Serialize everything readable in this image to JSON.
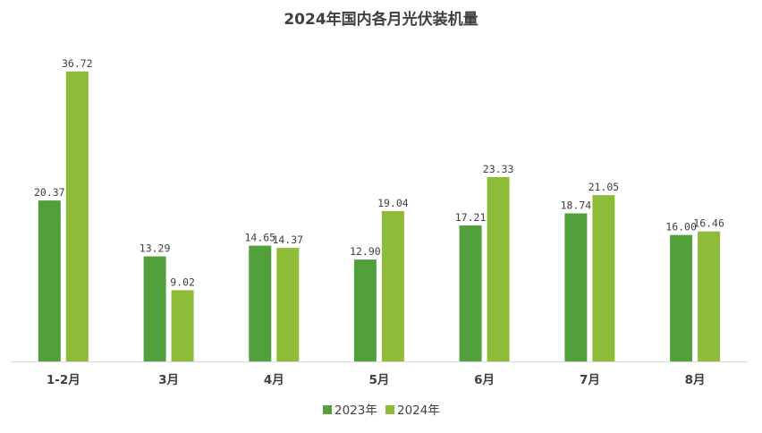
{
  "chart_data": {
    "type": "bar",
    "title": "2024年国内各月光伏装机量",
    "categories": [
      "1-2月",
      "3月",
      "4月",
      "5月",
      "6月",
      "7月",
      "8月"
    ],
    "series": [
      {
        "name": "2023年",
        "color": "#52a03c",
        "values": [
          20.37,
          13.29,
          14.65,
          12.9,
          17.21,
          18.74,
          16.0
        ],
        "labels": [
          "20.37",
          "13.29",
          "14.65",
          "12.90",
          "17.21",
          "18.74",
          "16.00"
        ]
      },
      {
        "name": "2024年",
        "color": "#8ebb38",
        "values": [
          36.72,
          9.02,
          14.37,
          19.04,
          23.33,
          21.05,
          16.46
        ],
        "labels": [
          "36.72",
          "9.02",
          "14.37",
          "19.04",
          "23.33",
          "21.05",
          "16.46"
        ]
      }
    ],
    "ylim": [
      0,
      37
    ],
    "grid": false,
    "legend_position": "bottom"
  }
}
